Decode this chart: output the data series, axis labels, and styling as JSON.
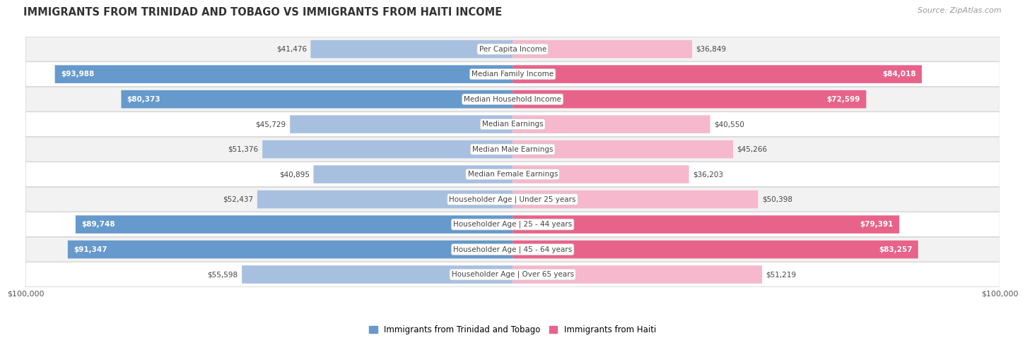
{
  "title": "IMMIGRANTS FROM TRINIDAD AND TOBAGO VS IMMIGRANTS FROM HAITI INCOME",
  "source": "Source: ZipAtlas.com",
  "categories": [
    "Per Capita Income",
    "Median Family Income",
    "Median Household Income",
    "Median Earnings",
    "Median Male Earnings",
    "Median Female Earnings",
    "Householder Age | Under 25 years",
    "Householder Age | 25 - 44 years",
    "Householder Age | 45 - 64 years",
    "Householder Age | Over 65 years"
  ],
  "left_values": [
    41476,
    93988,
    80373,
    45729,
    51376,
    40895,
    52437,
    89748,
    91347,
    55598
  ],
  "right_values": [
    36849,
    84018,
    72599,
    40550,
    45266,
    36203,
    50398,
    79391,
    83257,
    51219
  ],
  "left_labels": [
    "$41,476",
    "$93,988",
    "$80,373",
    "$45,729",
    "$51,376",
    "$40,895",
    "$52,437",
    "$89,748",
    "$91,347",
    "$55,598"
  ],
  "right_labels": [
    "$36,849",
    "$84,018",
    "$72,599",
    "$40,550",
    "$45,266",
    "$36,203",
    "$50,398",
    "$79,391",
    "$83,257",
    "$51,219"
  ],
  "max_value": 100000,
  "left_color_light": "#a8c0e0",
  "left_color_dark": "#6699cc",
  "right_color_light": "#f5b8cc",
  "right_color_dark": "#e8638a",
  "background_color": "#ffffff",
  "row_bg_odd": "#f2f2f2",
  "row_bg_even": "#ffffff",
  "legend_left": "Immigrants from Trinidad and Tobago",
  "legend_right": "Immigrants from Haiti",
  "threshold": 60000,
  "cat_label_color": "#555555",
  "cat_label_bg": "#ffffff"
}
